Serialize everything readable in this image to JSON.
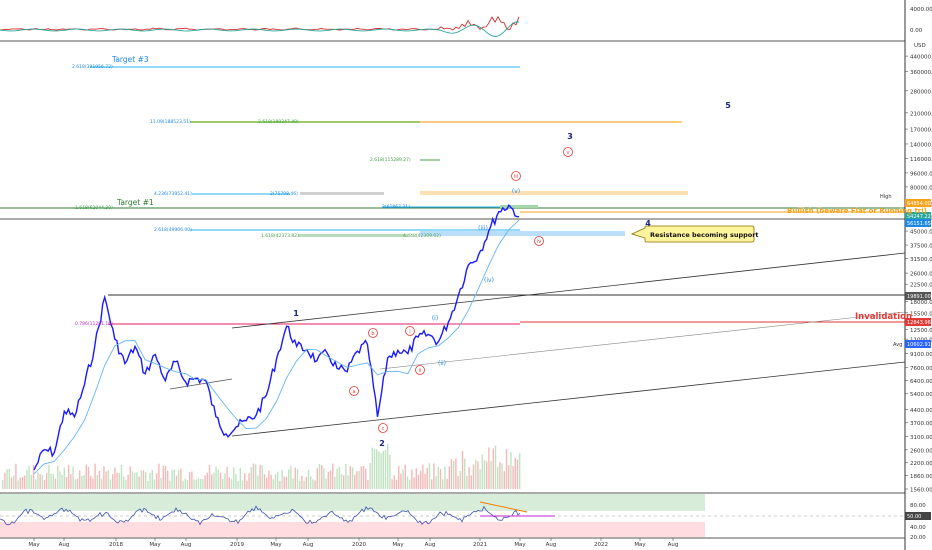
{
  "chart_data": {
    "type": "line",
    "scale": "log",
    "grid": false,
    "x_ticks": [
      "May",
      "Aug",
      "2018",
      "May",
      "Aug",
      "2019",
      "May",
      "Aug",
      "2020",
      "May",
      "Aug",
      "2021",
      "May",
      "Aug",
      "2022",
      "May",
      "Aug"
    ],
    "y_ticks": [
      "440000.00",
      "360000.00",
      "280000.00",
      "210000.00",
      "170000.00",
      "140000.00",
      "116000.00",
      "96000.00",
      "80000.00",
      "64000.00",
      "54000.00",
      "45000.00",
      "37500.00",
      "31500.00",
      "26000.00",
      "22500.00",
      "18000.00",
      "15500.00",
      "12500.00",
      "11000.00",
      "9100.00",
      "7600.00",
      "6400.00",
      "5400.00",
      "4400.00",
      "3700.00",
      "3100.00",
      "2600.00",
      "2200.00",
      "1860.00",
      "1560.00"
    ],
    "top_panel_ticks": [
      "4000.00",
      "0.00",
      "-4000.00"
    ],
    "currency": "USD",
    "rsi_ticks": [
      "80.00",
      "60.00",
      "40.00",
      "20.00"
    ],
    "price_tags": [
      {
        "label": "High",
        "value": "64854.00",
        "color": "#f7a21b"
      },
      {
        "value": "54247.22",
        "color": "#26a69a"
      },
      {
        "value": "56151.65",
        "color": "#1e88e5"
      },
      {
        "value": "19891.00",
        "color": "#555555"
      },
      {
        "value": "12843.96",
        "color": "#e53935"
      },
      {
        "label": "Avg",
        "value": "10602.91",
        "color": "#2962ff"
      },
      {
        "value": "50.00",
        "color": "#444444"
      }
    ],
    "fib_levels": [
      {
        "text": "2.618(391956.72)",
        "value": 391956.72,
        "color": "#1e88e5"
      },
      {
        "text": "11.09(188523.51)",
        "value": 188523.51,
        "color": "#1e88e5"
      },
      {
        "text": "2.618(189247.49)",
        "value": 189247.49,
        "color": "#43a047"
      },
      {
        "text": "2.618(115289.27)",
        "value": 115289.27,
        "color": "#43a047"
      },
      {
        "text": "4.236(73952.41)",
        "value": 73952.41,
        "color": "#1e88e5"
      },
      {
        "text": "2(75708.46)",
        "value": 75708.46,
        "color": "#1e88e5"
      },
      {
        "text": "1.618(62044.30)",
        "value": 62044.3,
        "color": "#43a047"
      },
      {
        "text": "2(61867.31)",
        "value": 61867.31,
        "color": "#1e88e5"
      },
      {
        "text": "2.618(49906.00)",
        "value": 49906.0,
        "color": "#1e88e5"
      },
      {
        "text": "1.618(42373.82)",
        "value": 42373.82,
        "color": "#43a047"
      },
      {
        "text": "4.448(42309.02)",
        "value": 42309.02,
        "color": "#43a047"
      },
      {
        "text": "0.786(11281.15)",
        "value": 11281.15,
        "color": "#c026d3"
      }
    ],
    "annotations": {
      "target3": "Target #3",
      "target1": "Target #1",
      "bullish": "Bullish (beware Flat or Running tri)",
      "invalidation": "Invalidation",
      "callout": "Resistance becoming support"
    },
    "wave_labels": [
      {
        "text": "5",
        "color": "#1a237e"
      },
      {
        "text": "3",
        "color": "#1a237e"
      },
      {
        "text": "4",
        "color": "#1a237e"
      },
      {
        "text": "1",
        "color": "#1a237e"
      },
      {
        "text": "2",
        "color": "#1a237e"
      },
      {
        "text": "v",
        "color": "#e53935"
      },
      {
        "text": "iii",
        "color": "#e53935"
      },
      {
        "text": "iv",
        "color": "#e53935"
      },
      {
        "text": "a",
        "color": "#e53935"
      },
      {
        "text": "b",
        "color": "#e53935"
      },
      {
        "text": "c",
        "color": "#e53935"
      },
      {
        "text": "i",
        "color": "#e53935"
      },
      {
        "text": "ii",
        "color": "#e53935"
      },
      {
        "text": "v",
        "color": "#1e88e5"
      },
      {
        "text": "iii",
        "color": "#1e88e5"
      },
      {
        "text": "iv",
        "color": "#1e88e5"
      },
      {
        "text": "i",
        "color": "#1e88e5"
      },
      {
        "text": "ii",
        "color": "#1e88e5"
      }
    ],
    "price_path": [
      [
        "May 2017",
        2000
      ],
      [
        "Jun 2017",
        2600
      ],
      [
        "Jul 2017",
        2500
      ],
      [
        "Aug 2017",
        4300
      ],
      [
        "Sep 2017",
        4000
      ],
      [
        "Oct 2017",
        6100
      ],
      [
        "Nov 2017",
        9900
      ],
      [
        "Dec 2017",
        19000
      ],
      [
        "Jan 2018",
        11000
      ],
      [
        "Feb 2018",
        8000
      ],
      [
        "Mar 2018",
        10000
      ],
      [
        "Apr 2018",
        7000
      ],
      [
        "May 2018",
        9000
      ],
      [
        "Jun 2018",
        6400
      ],
      [
        "Jul 2018",
        8200
      ],
      [
        "Aug 2018",
        6300
      ],
      [
        "Sep 2018",
        6600
      ],
      [
        "Oct 2018",
        6400
      ],
      [
        "Nov 2018",
        4000
      ],
      [
        "Dec 2018",
        3200
      ],
      [
        "Jan 2019",
        3500
      ],
      [
        "Feb 2019",
        3800
      ],
      [
        "Mar 2019",
        4100
      ],
      [
        "Apr 2019",
        5300
      ],
      [
        "May 2019",
        8500
      ],
      [
        "Jun 2019",
        13000
      ],
      [
        "Jul 2019",
        10000
      ],
      [
        "Aug 2019",
        9600
      ],
      [
        "Sep 2019",
        8300
      ],
      [
        "Oct 2019",
        9200
      ],
      [
        "Nov 2019",
        7500
      ],
      [
        "Dec 2019",
        7200
      ],
      [
        "Jan 2020",
        9400
      ],
      [
        "Feb 2020",
        10300
      ],
      [
        "Mar 2020",
        4000
      ],
      [
        "Apr 2020",
        8600
      ],
      [
        "May 2020",
        9500
      ],
      [
        "Jun 2020",
        9100
      ],
      [
        "Jul 2020",
        11300
      ],
      [
        "Aug 2020",
        11700
      ],
      [
        "Sep 2020",
        10600
      ],
      [
        "Oct 2020",
        13700
      ],
      [
        "Nov 2020",
        19500
      ],
      [
        "Dec 2020",
        29000
      ],
      [
        "Jan 2021",
        33000
      ],
      [
        "Feb 2021",
        45000
      ],
      [
        "Mar 2021",
        58000
      ],
      [
        "Apr 2021",
        63000
      ],
      [
        "May 2021",
        54247
      ]
    ]
  }
}
